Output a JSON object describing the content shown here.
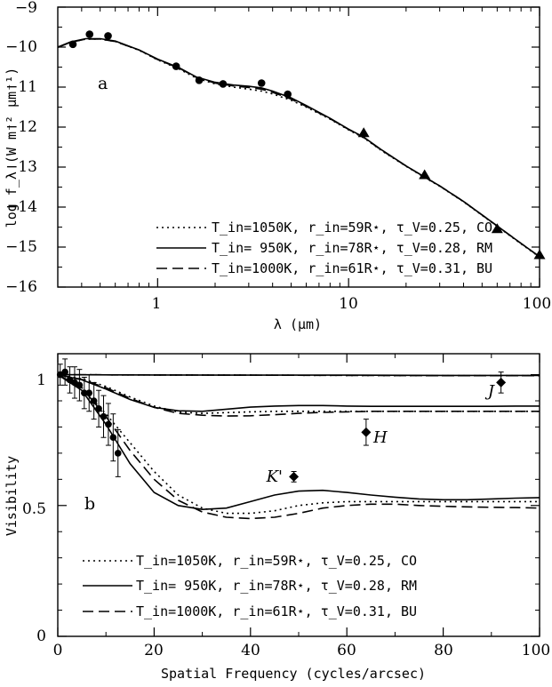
{
  "chart_data": [
    {
      "type": "line",
      "panel_label": "a",
      "xlabel": "λ (μm)",
      "ylabel": "log f_λ (W m⁻² μm⁻¹)",
      "xscale": "log",
      "xlim": [
        0.3,
        100
      ],
      "ylim": [
        -16,
        -9
      ],
      "xtick_labels": [
        "1",
        "10",
        "100"
      ],
      "ytick_labels": [
        "−9",
        "−10",
        "−11",
        "−12",
        "−13",
        "−14",
        "−15",
        "−16"
      ],
      "series": [
        {
          "name": "T_in=1050K, r_in=59R⋆, τ_V=0.25, CO",
          "style": "dotted",
          "x": [
            0.3,
            0.35,
            0.42,
            0.5,
            0.6,
            0.8,
            1.0,
            1.3,
            1.6,
            2.0,
            2.5,
            3.0,
            3.5,
            4.0,
            5.0,
            6.0,
            8.0,
            10.0,
            12.0,
            15.0,
            20.0,
            25.0,
            30.0,
            40.0,
            60.0,
            80.0,
            100.0
          ],
          "y": [
            -10.0,
            -9.88,
            -9.8,
            -9.8,
            -9.86,
            -10.08,
            -10.32,
            -10.55,
            -10.78,
            -10.92,
            -11.0,
            -11.05,
            -11.1,
            -11.17,
            -11.33,
            -11.5,
            -11.8,
            -12.07,
            -12.27,
            -12.6,
            -12.98,
            -13.26,
            -13.48,
            -13.87,
            -14.48,
            -14.92,
            -15.25
          ]
        },
        {
          "name": "T_in= 950K, r_in=78R⋆, τ_V=0.28, RM",
          "style": "solid",
          "x": [
            0.3,
            0.35,
            0.42,
            0.5,
            0.6,
            0.8,
            1.0,
            1.3,
            1.6,
            2.0,
            2.5,
            3.0,
            3.5,
            4.0,
            5.0,
            6.0,
            8.0,
            10.0,
            12.0,
            15.0,
            20.0,
            25.0,
            30.0,
            40.0,
            60.0,
            80.0,
            100.0
          ],
          "y": [
            -10.0,
            -9.87,
            -9.79,
            -9.79,
            -9.85,
            -10.07,
            -10.3,
            -10.52,
            -10.75,
            -10.88,
            -10.95,
            -10.98,
            -11.02,
            -11.1,
            -11.27,
            -11.46,
            -11.78,
            -12.05,
            -12.25,
            -12.58,
            -12.97,
            -13.25,
            -13.47,
            -13.86,
            -14.47,
            -14.91,
            -15.24
          ]
        },
        {
          "name": "T_in=1000K, r_in=61R⋆, τ_V=0.31, BU",
          "style": "dashed",
          "x": [
            0.3,
            0.35,
            0.42,
            0.5,
            0.6,
            0.8,
            1.0,
            1.3,
            1.6,
            2.0,
            2.5,
            3.0,
            3.5,
            4.0,
            5.0,
            6.0,
            8.0,
            10.0,
            12.0,
            15.0,
            20.0,
            25.0,
            30.0,
            40.0,
            60.0,
            80.0,
            100.0
          ],
          "y": [
            -10.01,
            -9.88,
            -9.8,
            -9.8,
            -9.86,
            -10.07,
            -10.31,
            -10.53,
            -10.76,
            -10.9,
            -10.97,
            -11.01,
            -11.05,
            -11.13,
            -11.3,
            -11.48,
            -11.79,
            -12.06,
            -12.26,
            -12.59,
            -12.97,
            -13.25,
            -13.47,
            -13.86,
            -14.47,
            -14.91,
            -15.24
          ]
        }
      ],
      "observations": {
        "circles": {
          "x": [
            0.36,
            0.44,
            0.55,
            1.25,
            1.65,
            2.2,
            3.5,
            4.8
          ],
          "y": [
            -9.93,
            -9.68,
            -9.72,
            -10.48,
            -10.83,
            -10.92,
            -10.9,
            -11.18
          ]
        },
        "triangles": {
          "x": [
            12,
            25,
            60,
            100
          ],
          "y": [
            -12.15,
            -13.2,
            -14.55,
            -15.2
          ]
        }
      }
    },
    {
      "type": "line",
      "panel_label": "b",
      "xlabel": "Spatial Frequency (cycles/arcsec)",
      "ylabel": "Visibility",
      "xlim": [
        0,
        100
      ],
      "ylim": [
        0,
        1.08
      ],
      "xtick_labels": [
        "0",
        "20",
        "40",
        "60",
        "80",
        "100"
      ],
      "ytick_labels": [
        "0",
        "0.5",
        "1"
      ],
      "series": [
        {
          "name": "T_in=1050K, r_in=59R⋆, τ_V=0.25, CO",
          "style": "dotted",
          "curves": [
            {
              "band": "K'",
              "x": [
                0,
                5,
                10,
                15,
                20,
                25,
                30,
                35,
                40,
                45,
                50,
                55,
                60,
                65,
                70,
                75,
                80,
                85,
                90,
                95,
                100
              ],
              "y": [
                1.0,
                0.95,
                0.85,
                0.74,
                0.63,
                0.54,
                0.49,
                0.47,
                0.47,
                0.48,
                0.5,
                0.51,
                0.515,
                0.515,
                0.515,
                0.515,
                0.515,
                0.515,
                0.515,
                0.515,
                0.515
              ]
            },
            {
              "band": "H",
              "x": [
                0,
                5,
                10,
                15,
                20,
                25,
                30,
                35,
                40,
                45,
                50,
                55,
                60,
                65,
                70,
                75,
                80,
                85,
                90,
                95,
                100
              ],
              "y": [
                1.0,
                0.985,
                0.955,
                0.915,
                0.88,
                0.857,
                0.852,
                0.855,
                0.858,
                0.86,
                0.86,
                0.86,
                0.86,
                0.86,
                0.86,
                0.86,
                0.86,
                0.86,
                0.86,
                0.86,
                0.86
              ]
            },
            {
              "band": "J",
              "x": [
                0,
                20,
                40,
                60,
                80,
                100
              ],
              "y": [
                1.0,
                0.999,
                0.998,
                0.997,
                0.996,
                0.996
              ]
            }
          ]
        },
        {
          "name": "T_in= 950K, r_in=78R⋆, τ_V=0.28, RM",
          "style": "solid",
          "curves": [
            {
              "band": "K'",
              "x": [
                0,
                5,
                10,
                15,
                20,
                25,
                30,
                35,
                40,
                45,
                50,
                55,
                60,
                65,
                70,
                75,
                80,
                85,
                90,
                95,
                100
              ],
              "y": [
                1.0,
                0.94,
                0.81,
                0.66,
                0.55,
                0.5,
                0.485,
                0.49,
                0.515,
                0.54,
                0.555,
                0.558,
                0.55,
                0.54,
                0.532,
                0.525,
                0.522,
                0.522,
                0.525,
                0.528,
                0.53
              ]
            },
            {
              "band": "H",
              "x": [
                0,
                5,
                10,
                15,
                20,
                25,
                30,
                35,
                40,
                45,
                50,
                55,
                60,
                65,
                70,
                75,
                80,
                85,
                90,
                95,
                100
              ],
              "y": [
                1.0,
                0.98,
                0.945,
                0.905,
                0.875,
                0.862,
                0.86,
                0.868,
                0.876,
                0.88,
                0.882,
                0.882,
                0.88,
                0.879,
                0.879,
                0.879,
                0.879,
                0.879,
                0.879,
                0.88,
                0.88
              ]
            },
            {
              "band": "J",
              "x": [
                0,
                20,
                40,
                60,
                80,
                100
              ],
              "y": [
                1.0,
                0.999,
                0.998,
                0.998,
                0.997,
                0.997
              ]
            }
          ]
        },
        {
          "name": "T_in=1000K, r_in=61R⋆, τ_V=0.31, BU",
          "style": "dashed",
          "curves": [
            {
              "band": "K'",
              "x": [
                0,
                5,
                10,
                15,
                20,
                25,
                30,
                35,
                40,
                45,
                50,
                55,
                60,
                65,
                70,
                75,
                80,
                85,
                90,
                95,
                100
              ],
              "y": [
                1.0,
                0.95,
                0.84,
                0.71,
                0.6,
                0.52,
                0.475,
                0.455,
                0.45,
                0.455,
                0.47,
                0.49,
                0.5,
                0.505,
                0.505,
                0.5,
                0.497,
                0.495,
                0.493,
                0.492,
                0.49
              ]
            },
            {
              "band": "H",
              "x": [
                0,
                5,
                10,
                15,
                20,
                25,
                30,
                35,
                40,
                45,
                50,
                55,
                60,
                65,
                70,
                75,
                80,
                85,
                90,
                95,
                100
              ],
              "y": [
                1.0,
                0.982,
                0.95,
                0.91,
                0.875,
                0.852,
                0.845,
                0.842,
                0.843,
                0.847,
                0.852,
                0.856,
                0.858,
                0.86,
                0.86,
                0.86,
                0.86,
                0.86,
                0.86,
                0.86,
                0.86
              ]
            },
            {
              "band": "J",
              "x": [
                0,
                20,
                40,
                60,
                80,
                100
              ],
              "y": [
                1.0,
                0.999,
                0.998,
                0.997,
                0.996,
                0.996
              ]
            }
          ]
        }
      ],
      "observations": {
        "circles": {
          "x": [
            0.5,
            1.5,
            2.5,
            3.5,
            4.5,
            5.5,
            6.5,
            7.5,
            8.5,
            9.5,
            10.5,
            11.5,
            12.5
          ],
          "y": [
            1.0,
            1.01,
            0.98,
            0.97,
            0.96,
            0.93,
            0.93,
            0.9,
            0.87,
            0.84,
            0.81,
            0.76,
            0.7
          ],
          "err": [
            0.04,
            0.05,
            0.05,
            0.06,
            0.06,
            0.06,
            0.07,
            0.07,
            0.07,
            0.08,
            0.08,
            0.09,
            0.09
          ]
        },
        "diamonds": [
          {
            "label": "J",
            "x": 92,
            "y": 0.97,
            "err": 0.04
          },
          {
            "label": "H",
            "x": 64,
            "y": 0.78,
            "err": 0.05
          },
          {
            "label": "K'",
            "x": 49,
            "y": 0.61,
            "err": 0.02
          }
        ]
      }
    }
  ]
}
